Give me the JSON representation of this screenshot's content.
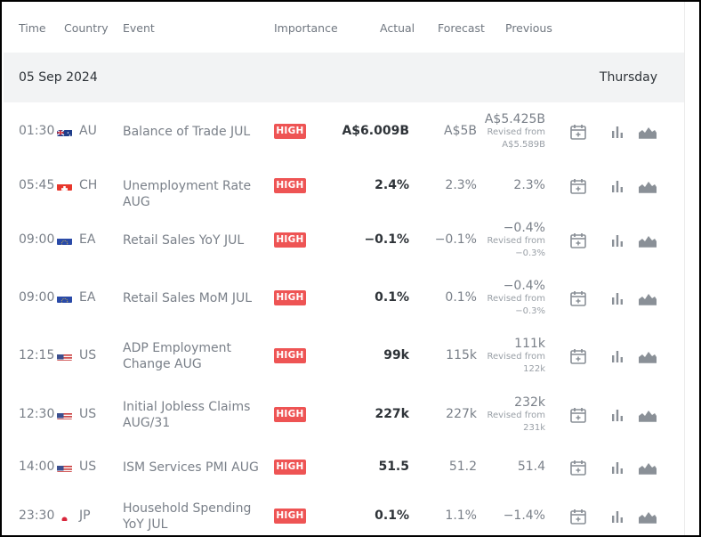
{
  "columns": {
    "time": "Time",
    "country": "Country",
    "event": "Event",
    "importance": "Importance",
    "actual": "Actual",
    "forecast": "Forecast",
    "previous": "Previous"
  },
  "date_group": {
    "date": "05 Sep 2024",
    "weekday": "Thursday"
  },
  "revised_prefix": "Revised from",
  "colors": {
    "high_badge": "#ee5454",
    "date_band": "#f2f3f4"
  },
  "rows": [
    {
      "time": "01:30",
      "country": "AU",
      "flag": "au-flag-icon",
      "event": "Balance of Trade JUL",
      "importance": "HIGH",
      "actual": "A$6.009B",
      "forecast": "A$5B",
      "previous": "A$5.425B",
      "revised_from": "A$5.589B"
    },
    {
      "time": "05:45",
      "country": "CH",
      "flag": "ch-flag-icon",
      "event": "Unemployment Rate AUG",
      "importance": "HIGH",
      "actual": "2.4%",
      "forecast": "2.3%",
      "previous": "2.3%",
      "revised_from": null
    },
    {
      "time": "09:00",
      "country": "EA",
      "flag": "eu-flag-icon",
      "event": "Retail Sales YoY JUL",
      "importance": "HIGH",
      "actual": "−0.1%",
      "forecast": "−0.1%",
      "previous": "−0.4%",
      "revised_from": "−0.3%"
    },
    {
      "time": "09:00",
      "country": "EA",
      "flag": "eu-flag-icon",
      "event": "Retail Sales MoM JUL",
      "importance": "HIGH",
      "actual": "0.1%",
      "forecast": "0.1%",
      "previous": "−0.4%",
      "revised_from": "−0.3%"
    },
    {
      "time": "12:15",
      "country": "US",
      "flag": "us-flag-icon",
      "event": "ADP Employment Change AUG",
      "importance": "HIGH",
      "actual": "99k",
      "forecast": "115k",
      "previous": "111k",
      "revised_from": "122k"
    },
    {
      "time": "12:30",
      "country": "US",
      "flag": "us-flag-icon",
      "event": "Initial Jobless Claims AUG/31",
      "importance": "HIGH",
      "actual": "227k",
      "forecast": "227k",
      "previous": "232k",
      "revised_from": "231k"
    },
    {
      "time": "14:00",
      "country": "US",
      "flag": "us-flag-icon",
      "event": "ISM Services PMI AUG",
      "importance": "HIGH",
      "actual": "51.5",
      "forecast": "51.2",
      "previous": "51.4",
      "revised_from": null
    },
    {
      "time": "23:30",
      "country": "JP",
      "flag": "jp-flag-icon",
      "event": "Household Spending YoY JUL",
      "importance": "HIGH",
      "actual": "0.1%",
      "forecast": "1.1%",
      "previous": "−1.4%",
      "revised_from": null
    }
  ]
}
